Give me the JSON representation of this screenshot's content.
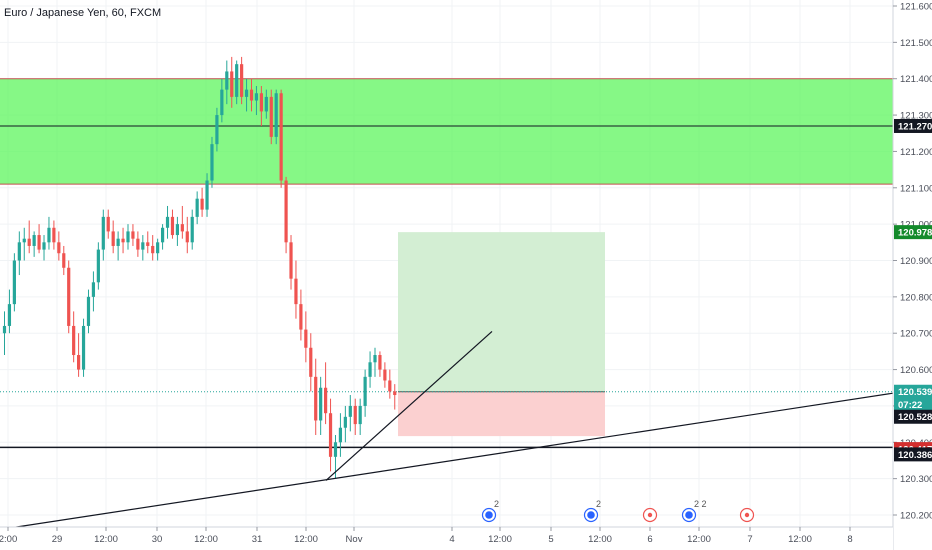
{
  "chart_data": {
    "type": "candlestick",
    "title": "Euro / Japanese Yen, 60, FXCM",
    "ylim": [
      120.15,
      121.64
    ],
    "y_ticks": [
      "121.600",
      "121.500",
      "121.400",
      "121.300",
      "121.200",
      "121.100",
      "121.000",
      "120.900",
      "120.800",
      "120.700",
      "120.600",
      "120.500",
      "120.400",
      "120.300",
      "120.200"
    ],
    "x_ticks": [
      "2:00",
      "29",
      "12:00",
      "30",
      "12:00",
      "31",
      "12:00",
      "Nov",
      "4",
      "12:00",
      "5",
      "12:00",
      "6",
      "12:00",
      "7",
      "12:00",
      "8"
    ],
    "colors": {
      "up": "#26a69a",
      "down": "#ef5350",
      "zone": "#5ef55e",
      "zone_border": "#c0504d",
      "target": "#d3eed3",
      "stop": "#fbd0d0",
      "green_label": "#138a2b",
      "red_label": "#d32f2f",
      "black_label": "#131722",
      "teal_label": "#26a69a"
    },
    "series": [
      {
        "candles": [
          [
            120.7,
            120.76,
            120.64,
            120.72
          ],
          [
            120.72,
            120.82,
            120.7,
            120.78
          ],
          [
            120.78,
            120.92,
            120.76,
            120.9
          ],
          [
            120.9,
            120.98,
            120.86,
            120.95
          ],
          [
            120.95,
            120.99,
            120.9,
            120.96
          ],
          [
            120.96,
            121.01,
            120.92,
            120.94
          ],
          [
            120.94,
            120.98,
            120.91,
            120.97
          ],
          [
            120.97,
            121.0,
            120.92,
            120.93
          ],
          [
            120.93,
            120.97,
            120.9,
            120.95
          ],
          [
            120.95,
            121.02,
            120.93,
            120.99
          ],
          [
            120.99,
            121.01,
            120.93,
            120.95
          ],
          [
            120.95,
            120.98,
            120.9,
            120.92
          ],
          [
            120.92,
            120.94,
            120.86,
            120.88
          ],
          [
            120.88,
            120.9,
            120.7,
            120.72
          ],
          [
            120.72,
            120.76,
            120.62,
            120.64
          ],
          [
            120.64,
            120.7,
            120.58,
            120.6
          ],
          [
            120.6,
            120.74,
            120.58,
            120.72
          ],
          [
            120.72,
            120.82,
            120.7,
            120.8
          ],
          [
            120.8,
            120.87,
            120.76,
            120.84
          ],
          [
            120.84,
            120.95,
            120.82,
            120.93
          ],
          [
            120.93,
            121.04,
            120.9,
            121.02
          ],
          [
            121.02,
            121.04,
            120.96,
            120.98
          ],
          [
            120.98,
            121.01,
            120.92,
            120.94
          ],
          [
            120.94,
            120.98,
            120.9,
            120.96
          ],
          [
            120.96,
            120.99,
            120.92,
            120.95
          ],
          [
            120.95,
            121.0,
            120.93,
            120.98
          ],
          [
            120.98,
            121.0,
            120.94,
            120.96
          ],
          [
            120.96,
            120.98,
            120.91,
            120.93
          ],
          [
            120.93,
            120.97,
            120.9,
            120.95
          ],
          [
            120.95,
            120.98,
            120.92,
            120.94
          ],
          [
            120.94,
            120.97,
            120.9,
            120.92
          ],
          [
            120.92,
            120.96,
            120.9,
            120.95
          ],
          [
            120.95,
            121.0,
            120.93,
            120.99
          ],
          [
            120.99,
            121.05,
            120.96,
            121.02
          ],
          [
            121.02,
            121.04,
            120.96,
            120.97
          ],
          [
            120.97,
            121.02,
            120.94,
            121.0
          ],
          [
            121.0,
            121.05,
            120.96,
            120.98
          ],
          [
            120.98,
            121.02,
            120.92,
            120.95
          ],
          [
            120.95,
            121.04,
            120.93,
            121.02
          ],
          [
            121.02,
            121.09,
            121.0,
            121.07
          ],
          [
            121.07,
            121.1,
            121.02,
            121.04
          ],
          [
            121.04,
            121.14,
            121.02,
            121.12
          ],
          [
            121.12,
            121.24,
            121.1,
            121.22
          ],
          [
            121.22,
            121.32,
            121.2,
            121.3
          ],
          [
            121.3,
            121.4,
            121.28,
            121.37
          ],
          [
            121.37,
            121.45,
            121.33,
            121.42
          ],
          [
            121.42,
            121.46,
            121.32,
            121.35
          ],
          [
            121.35,
            121.45,
            121.33,
            121.44
          ],
          [
            121.44,
            121.46,
            121.33,
            121.35
          ],
          [
            121.35,
            121.4,
            121.31,
            121.37
          ],
          [
            121.37,
            121.4,
            121.31,
            121.34
          ],
          [
            121.34,
            121.38,
            121.3,
            121.36
          ],
          [
            121.36,
            121.38,
            121.27,
            121.31
          ],
          [
            121.31,
            121.37,
            121.29,
            121.35
          ],
          [
            121.35,
            121.37,
            121.22,
            121.24
          ],
          [
            121.24,
            121.37,
            121.22,
            121.36
          ],
          [
            121.36,
            121.37,
            121.1,
            121.12
          ],
          [
            121.12,
            121.13,
            120.92,
            120.95
          ],
          [
            120.95,
            120.97,
            120.82,
            120.85
          ],
          [
            120.85,
            120.9,
            120.74,
            120.78
          ],
          [
            120.78,
            120.82,
            120.68,
            120.71
          ],
          [
            120.71,
            120.76,
            120.62,
            120.66
          ],
          [
            120.66,
            120.7,
            120.54,
            120.58
          ],
          [
            120.58,
            120.63,
            120.42,
            120.46
          ],
          [
            120.46,
            120.58,
            120.42,
            120.55
          ],
          [
            120.55,
            120.62,
            120.45,
            120.48
          ],
          [
            120.48,
            120.52,
            120.32,
            120.36
          ],
          [
            120.36,
            120.42,
            120.3,
            120.4
          ],
          [
            120.4,
            120.48,
            120.36,
            120.44
          ],
          [
            120.44,
            120.5,
            120.4,
            120.47
          ],
          [
            120.47,
            120.53,
            120.43,
            120.5
          ],
          [
            120.5,
            120.52,
            120.42,
            120.45
          ],
          [
            120.45,
            120.52,
            120.42,
            120.5
          ],
          [
            120.5,
            120.6,
            120.47,
            120.58
          ],
          [
            120.58,
            120.65,
            120.55,
            120.62
          ],
          [
            120.62,
            120.66,
            120.58,
            120.64
          ],
          [
            120.64,
            120.65,
            120.58,
            120.6
          ],
          [
            120.6,
            120.62,
            120.55,
            120.57
          ],
          [
            120.57,
            120.6,
            120.52,
            120.54
          ],
          [
            120.54,
            120.56,
            120.49,
            120.53
          ]
        ],
        "last": 120.528
      }
    ],
    "zone": {
      "top": 121.4,
      "bottom": 121.11
    },
    "zone_mid_line": 121.27,
    "support_line": 120.386,
    "position": {
      "target": 120.978,
      "entry": 120.539,
      "stop": 120.417,
      "x_start": "4",
      "x_end": "12:00"
    },
    "trendlines": [
      {
        "from": [
          0,
          120.16
        ],
        "to": [
          "right_edge",
          120.535
        ]
      },
      {
        "from": [
          "candle_62",
          120.295
        ],
        "to": [
          "candle_92",
          120.705
        ]
      }
    ],
    "price_labels": [
      {
        "text": "121.270",
        "bind": "labels.l1"
      },
      {
        "text": "120.978",
        "bind": "labels.l2"
      },
      {
        "text": "120.539",
        "bind": "labels.l3"
      },
      {
        "text": "07:22",
        "bind": "labels.l4"
      },
      {
        "text": "120.528",
        "bind": "labels.l5"
      },
      {
        "text": "120.417",
        "bind": "labels.l6"
      },
      {
        "text": "120.386",
        "bind": "labels.l7"
      }
    ],
    "events": [
      {
        "x": "12:00",
        "label": "2"
      },
      {
        "x": "5",
        "label": "2"
      },
      {
        "x": "6",
        "label": ""
      },
      {
        "x": "12:00",
        "label": "2 2"
      },
      {
        "x": "7",
        "label": ""
      }
    ]
  },
  "labels": {
    "l1": "121.270",
    "l2": "120.978",
    "l3": "120.539",
    "l4": "07:22",
    "l5": "120.528",
    "l6": "120.417",
    "l7": "120.386"
  }
}
